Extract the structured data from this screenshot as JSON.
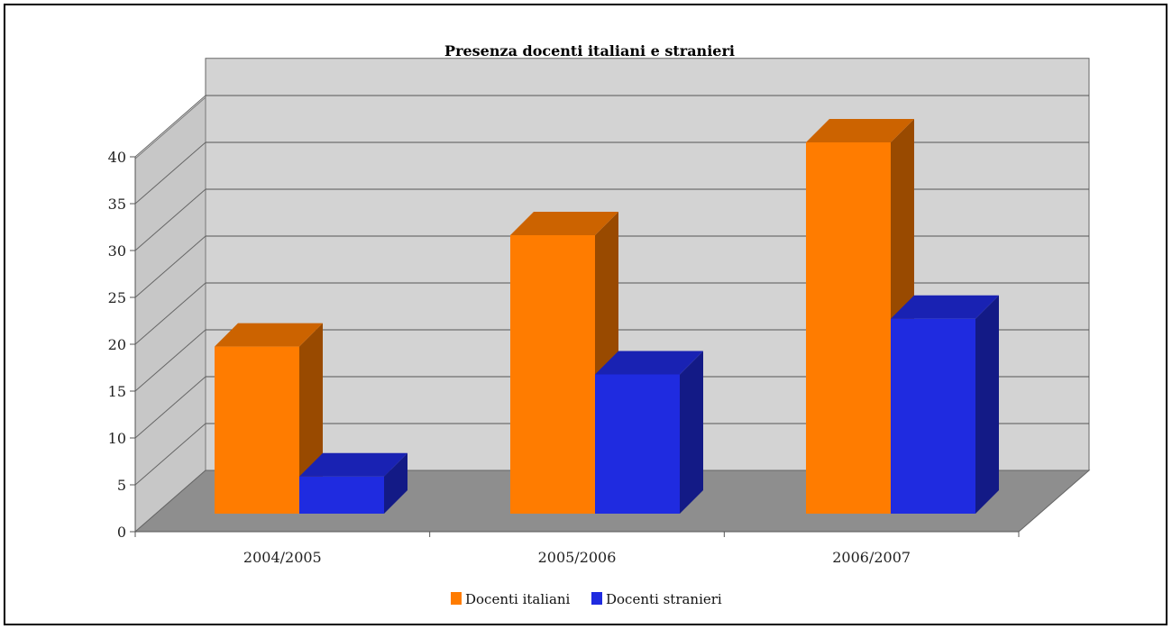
{
  "chart_data": {
    "type": "bar",
    "title": "Presenza docenti italiani e stranieri",
    "xlabel": "",
    "ylabel": "",
    "categories": [
      "2004/2005",
      "2005/2006",
      "2006/2007"
    ],
    "series": [
      {
        "name": "Docenti italiani",
        "values": [
          18,
          30,
          40
        ],
        "color": "#ff7c00"
      },
      {
        "name": "Docenti stranieri",
        "values": [
          4,
          15,
          21
        ],
        "color": "#1f2be0"
      }
    ],
    "ylim": [
      0,
      40
    ],
    "yticks": [
      0,
      5,
      10,
      15,
      20,
      25,
      30,
      35,
      40
    ],
    "grid": true,
    "legend": "bottom",
    "style": "3d-clustered-column"
  }
}
